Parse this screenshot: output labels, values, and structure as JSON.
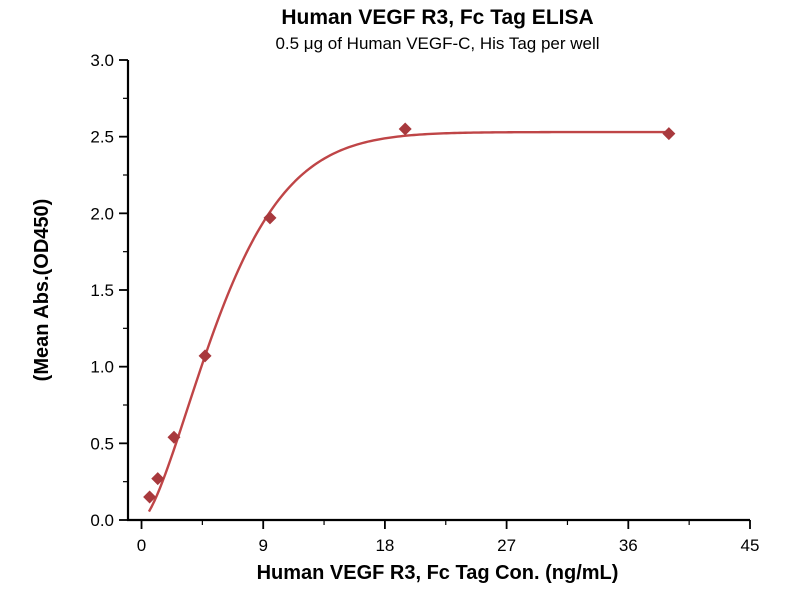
{
  "chart_data": {
    "type": "scatter",
    "title": "Human VEGF R3, Fc Tag ELISA",
    "subtitle": "0.5 μg of Human VEGF-C, His Tag per well",
    "xlabel": "Human VEGF R3, Fc Tag Con. (ng/mL)",
    "ylabel": "(Mean Abs.(OD450)",
    "xlim": [
      -1,
      45
    ],
    "ylim": [
      0,
      3.0
    ],
    "x_ticks": [
      "0",
      "9",
      "18",
      "27",
      "36",
      "45"
    ],
    "y_ticks": [
      "0.0",
      "0.5",
      "1.0",
      "1.5",
      "2.0",
      "2.5",
      "3.0"
    ],
    "x_minor_ticks": [
      4.5,
      13.5,
      22.5,
      31.5,
      40.5
    ],
    "y_minor_ticks": [
      0.25,
      0.75,
      1.25,
      1.75,
      2.25,
      2.75
    ],
    "grid": false,
    "legend": null,
    "marker_shape": "diamond",
    "points": [
      [
        0.6,
        0.15
      ],
      [
        1.2,
        0.27
      ],
      [
        2.4,
        0.54
      ],
      [
        4.7,
        1.07
      ],
      [
        9.5,
        1.97
      ],
      [
        19.5,
        2.55
      ],
      [
        39.0,
        2.52
      ]
    ],
    "fit_curve": {
      "model": "y = ymax * (1 - exp(-(x/k)^p))",
      "ymax": 2.53,
      "k": 7.0,
      "p": 1.5,
      "x_start": 0.55,
      "x_end": 39.0
    },
    "colors": {
      "curve": "#bf4547",
      "marker": "#a8393d",
      "axis": "#000000",
      "background": "#ffffff"
    }
  }
}
